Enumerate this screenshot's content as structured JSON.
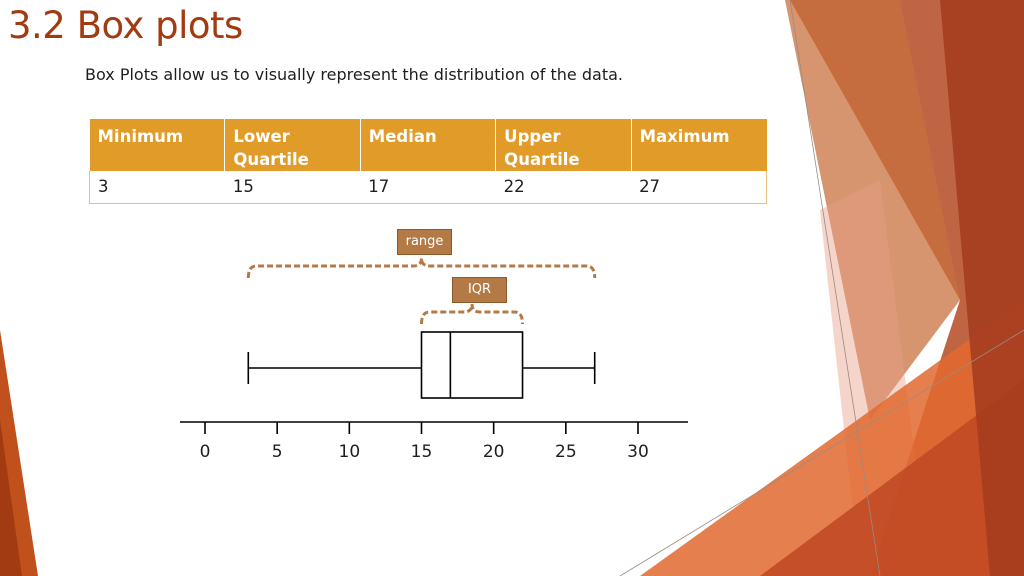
{
  "slide": {
    "title": "3.2 Box plots",
    "subtitle": "Box Plots allow us to visually represent the distribution of the data."
  },
  "table": {
    "headers": [
      "Minimum",
      "Lower Quartile",
      "Median",
      "Upper Quartile",
      "Maximum"
    ],
    "values": [
      "3",
      "15",
      "17",
      "22",
      "27"
    ]
  },
  "callouts": {
    "range": "range",
    "iqr": "IQR"
  },
  "colors": {
    "title": "#a23b12",
    "table_header": "#e19b28",
    "callout": "#b37a45",
    "decoration": [
      "#c0501c",
      "#e0702f",
      "#a8432a"
    ]
  },
  "chart_data": {
    "type": "boxplot",
    "minimum": 3,
    "lower_quartile": 15,
    "median": 17,
    "upper_quartile": 22,
    "maximum": 27,
    "xlim": [
      0,
      30
    ],
    "xticks": [
      0,
      5,
      10,
      15,
      20,
      25,
      30
    ],
    "xtick_labels": [
      "0",
      "5",
      "10",
      "15",
      "20",
      "25",
      "30"
    ],
    "annotations": [
      "range",
      "IQR"
    ],
    "grid": false
  }
}
